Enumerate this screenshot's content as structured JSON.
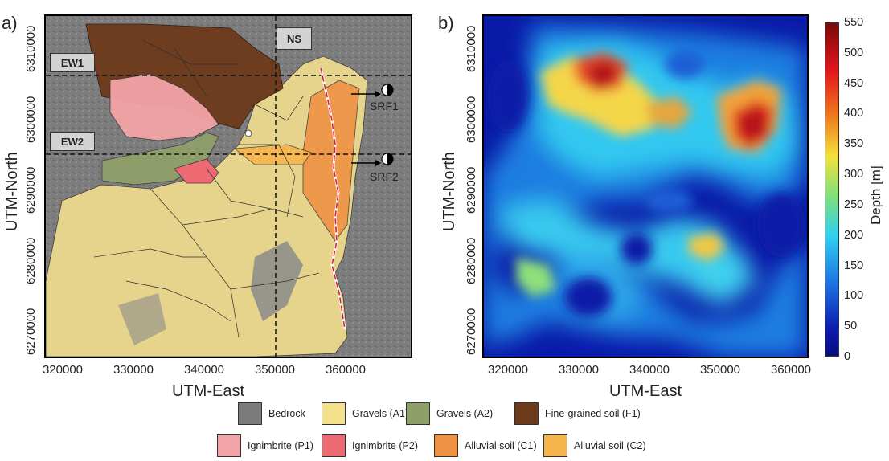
{
  "panel_a": {
    "letter": "a)",
    "y_label": "UTM-North",
    "x_label": "UTM-East",
    "y_ticks": [
      "6310000",
      "6300000",
      "6290000",
      "6280000",
      "6270000"
    ],
    "x_ticks": [
      "320000",
      "330000",
      "340000",
      "350000",
      "360000"
    ],
    "section_labels": {
      "ew1": "EW1",
      "ew2": "EW2",
      "ns": "NS"
    },
    "fault_labels": {
      "srf1": "SRF1",
      "srf2": "SRF2"
    }
  },
  "panel_b": {
    "letter": "b)",
    "y_label": "UTM-North",
    "x_label": "UTM-East",
    "y_ticks": [
      "6310000",
      "6300000",
      "6290000",
      "6280000",
      "6270000"
    ],
    "x_ticks": [
      "320000",
      "330000",
      "340000",
      "350000",
      "360000"
    ],
    "colorbar": {
      "label": "Depth [m]",
      "min": 0,
      "max": 550,
      "ticks": [
        "550",
        "500",
        "450",
        "400",
        "350",
        "300",
        "250",
        "200",
        "150",
        "100",
        "50",
        "0"
      ]
    }
  },
  "legend": [
    {
      "label": "Bedrock",
      "color": "#7b7b7b"
    },
    {
      "label": "Gravels (A1)",
      "color": "#f4e08a"
    },
    {
      "label": "Gravels (A2)",
      "color": "#8f9f6a"
    },
    {
      "label": "Fine-grained soil (F1)",
      "color": "#6e3a1c"
    },
    {
      "label": "Ignimbrite (P1)",
      "color": "#f2a3a6"
    },
    {
      "label": "Ignimbrite (P2)",
      "color": "#ee6a73"
    },
    {
      "label": "Alluvial soil (C1)",
      "color": "#ef9244"
    },
    {
      "label": "Alluvial soil (C2)",
      "color": "#f6b44d"
    }
  ]
}
